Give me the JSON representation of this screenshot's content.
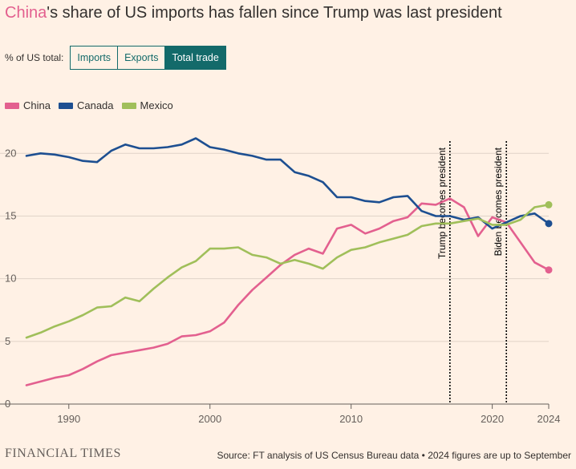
{
  "header": {
    "title_highlight": "China",
    "title_rest": "'s share of US imports has fallen since Trump was last president"
  },
  "controls": {
    "label": "% of US total:",
    "options": [
      "Imports",
      "Exports",
      "Total trade"
    ],
    "selected": "Total trade"
  },
  "legend": [
    {
      "name": "China",
      "color": "#e3608f"
    },
    {
      "name": "Canada",
      "color": "#1d4f91"
    },
    {
      "name": "Mexico",
      "color": "#a0bf5a"
    }
  ],
  "footer": {
    "brand": "FINANCIAL TIMES",
    "source": "Source: FT analysis of US Census Bureau data • 2024 figures are up to September"
  },
  "chart_data": {
    "type": "line",
    "title": "China's share of US imports has fallen since Trump was last president",
    "xlabel": "",
    "ylabel": "% of US total",
    "xlim": [
      1987,
      2024
    ],
    "ylim": [
      0,
      22
    ],
    "x_ticks": [
      "1990",
      "2000",
      "2010",
      "2020",
      "2024"
    ],
    "y_ticks": [
      "0",
      "5",
      "10",
      "15",
      "20"
    ],
    "x": [
      1987,
      1988,
      1989,
      1990,
      1991,
      1992,
      1993,
      1994,
      1995,
      1996,
      1997,
      1998,
      1999,
      2000,
      2001,
      2002,
      2003,
      2004,
      2005,
      2006,
      2007,
      2008,
      2009,
      2010,
      2011,
      2012,
      2013,
      2014,
      2015,
      2016,
      2017,
      2018,
      2019,
      2020,
      2021,
      2022,
      2023,
      2024
    ],
    "series": [
      {
        "name": "China",
        "color": "#e3608f",
        "values": [
          1.5,
          1.8,
          2.1,
          2.3,
          2.8,
          3.4,
          3.9,
          4.1,
          4.3,
          4.5,
          4.8,
          5.4,
          5.5,
          5.8,
          6.5,
          7.9,
          9.1,
          10.1,
          11.1,
          11.9,
          12.4,
          12.0,
          14.0,
          14.3,
          13.6,
          14.0,
          14.6,
          14.9,
          16.0,
          15.9,
          16.4,
          15.7,
          13.4,
          14.9,
          14.5,
          12.9,
          11.3,
          10.7
        ]
      },
      {
        "name": "Canada",
        "color": "#1d4f91",
        "values": [
          19.8,
          20.0,
          19.9,
          19.7,
          19.4,
          19.3,
          20.2,
          20.7,
          20.4,
          20.4,
          20.5,
          20.7,
          21.2,
          20.5,
          20.3,
          20.0,
          19.8,
          19.5,
          19.5,
          18.5,
          18.2,
          17.7,
          16.5,
          16.5,
          16.2,
          16.1,
          16.5,
          16.6,
          15.4,
          15.0,
          15.0,
          14.7,
          14.9,
          14.0,
          14.5,
          15.0,
          15.2,
          14.4
        ]
      },
      {
        "name": "Mexico",
        "color": "#a0bf5a",
        "values": [
          5.3,
          5.7,
          6.2,
          6.6,
          7.1,
          7.7,
          7.8,
          8.5,
          8.2,
          9.2,
          10.1,
          10.9,
          11.4,
          12.4,
          12.4,
          12.5,
          11.9,
          11.7,
          11.2,
          11.5,
          11.2,
          10.8,
          11.7,
          12.3,
          12.5,
          12.9,
          13.2,
          13.5,
          14.2,
          14.4,
          14.4,
          14.6,
          14.8,
          14.3,
          14.3,
          14.7,
          15.7,
          15.9
        ]
      }
    ],
    "annotations": [
      {
        "x": 2017,
        "label": "Trump becomes president"
      },
      {
        "x": 2021,
        "label": "Biden becomes president"
      }
    ],
    "grid": true,
    "legend_position": "top-left"
  }
}
